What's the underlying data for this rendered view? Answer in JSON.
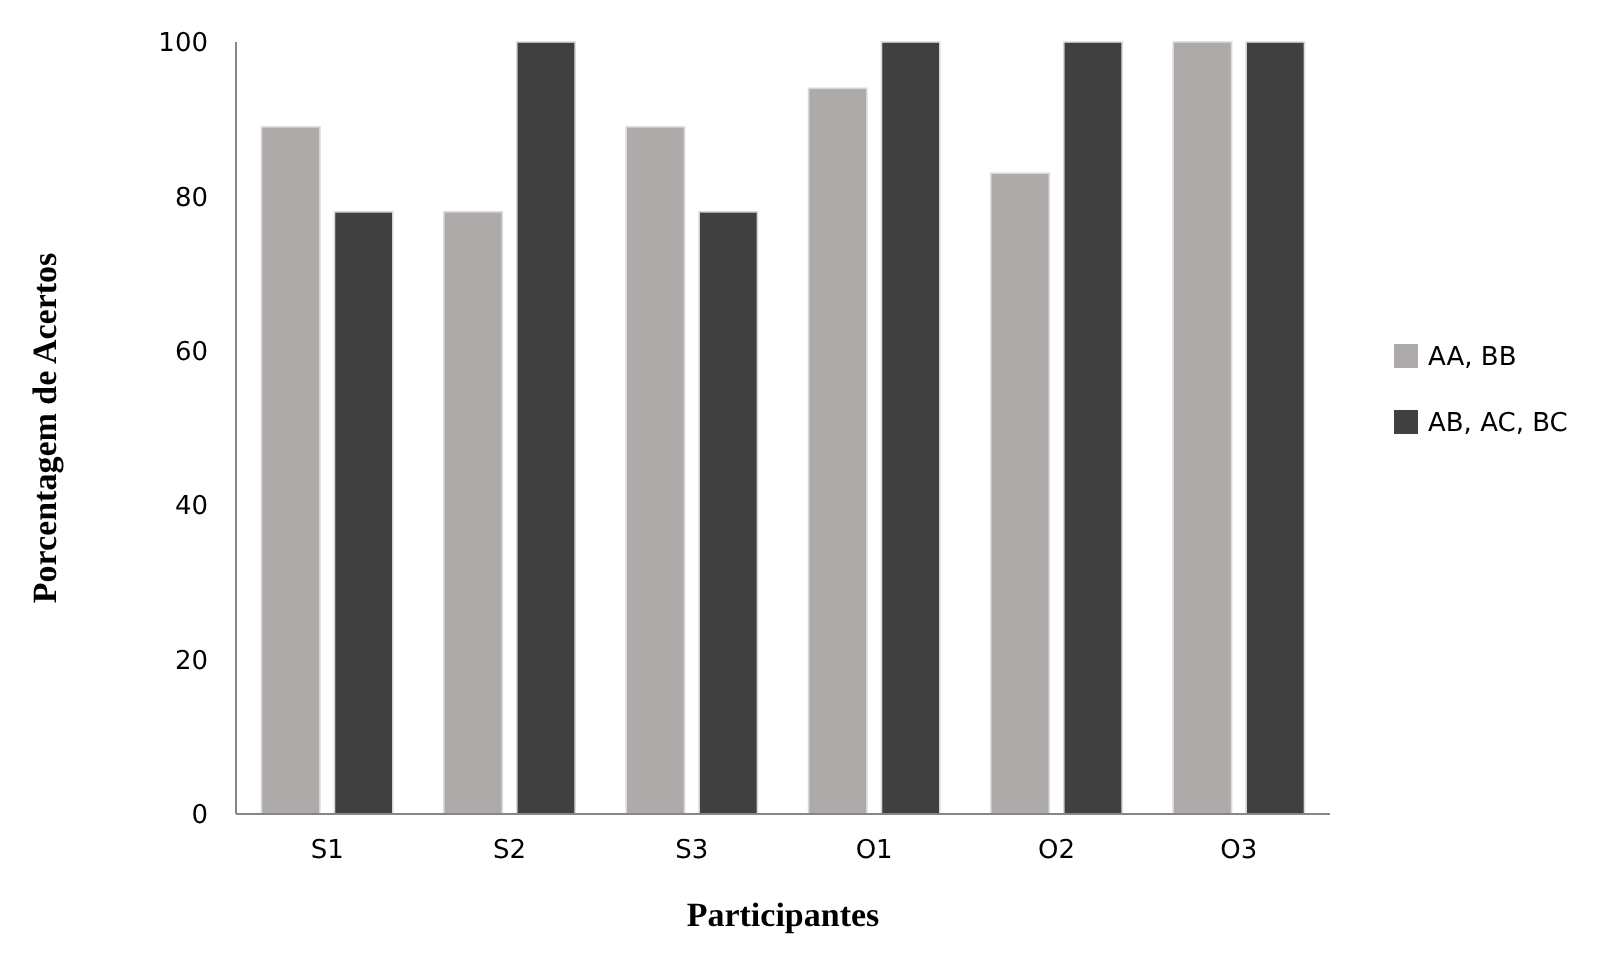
{
  "chart_data": {
    "type": "bar",
    "xlabel": "Participantes",
    "ylabel": "Porcentagem de Acertos",
    "categories": [
      "S1",
      "S2",
      "S3",
      "O1",
      "O2",
      "O3"
    ],
    "series": [
      {
        "name": "AA, BB",
        "color": "#aeaaa9",
        "values": [
          89,
          78,
          89,
          94,
          83,
          100
        ]
      },
      {
        "name": "AB, AC, BC",
        "color": "#404040",
        "values": [
          78,
          100,
          78,
          100,
          100,
          100
        ]
      }
    ],
    "ylim": [
      0,
      100
    ],
    "yticks": [
      0,
      20,
      40,
      60,
      80,
      100
    ],
    "grid": false,
    "legend": "right"
  }
}
